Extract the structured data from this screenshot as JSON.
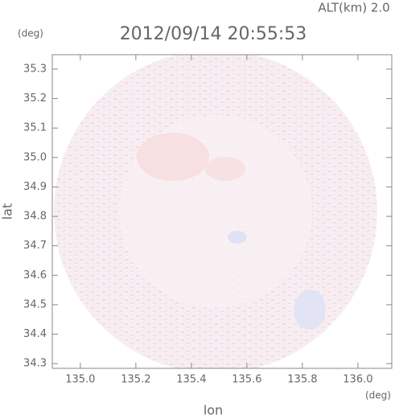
{
  "chart_data": {
    "type": "radar-image",
    "title": "2012/09/14 20:55:53",
    "subtitle": "ALT(km) 2.0",
    "y_unit": "(deg)",
    "x_unit": "(deg)",
    "x_label": "lon",
    "y_label": "lat",
    "xlim": [
      134.899,
      136.122
    ],
    "ylim": [
      34.284,
      35.349
    ],
    "xticks": [
      {
        "value": 135.0,
        "label": "135.0"
      },
      135.2,
      135.4,
      135.6,
      135.8,
      {
        "value": 136.0,
        "label": "136.0"
      }
    ],
    "yticks": [
      34.3,
      34.4,
      34.5,
      34.6,
      34.7,
      34.8,
      34.9,
      {
        "value": 35.0,
        "label": "35.0"
      },
      35.1,
      35.2,
      35.3
    ]
  }
}
